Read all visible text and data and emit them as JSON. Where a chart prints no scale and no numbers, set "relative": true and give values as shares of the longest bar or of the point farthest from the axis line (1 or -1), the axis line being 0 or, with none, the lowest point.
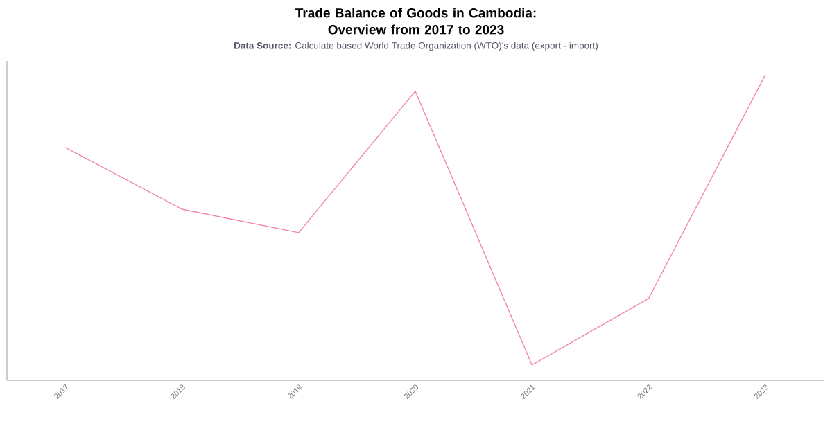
{
  "chart_data": {
    "type": "line",
    "title": "Trade Balance of Goods in Cambodia: Overview from 2017 to 2023",
    "subtitle": "**Data Source:** Calculate based World Trade Organization (WTO)'s data (export - import)",
    "relative": true,
    "categories": [
      "2017",
      "2018",
      "2019",
      "2020",
      "2021",
      "2022",
      "2023"
    ],
    "series": [
      {
        "color": "#f285b0",
        "values": [
          0.762,
          0.56,
          0.483,
          0.946,
          0.05,
          0.268,
          1
        ]
      }
    ]
  }
}
